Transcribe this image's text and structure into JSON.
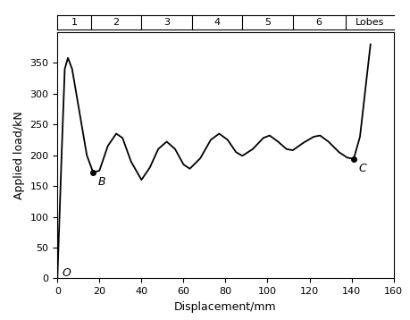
{
  "chart_data": {
    "type": "line",
    "xlabel": "Displacement/mm",
    "ylabel": "Applied load/kN",
    "x": [
      0,
      2,
      3.5,
      5,
      7,
      10,
      14,
      17,
      20,
      24,
      28,
      31,
      35,
      40,
      44,
      48,
      52,
      56,
      60,
      63,
      68,
      73,
      77,
      81,
      85,
      88,
      93,
      98,
      101,
      105,
      109,
      112,
      117,
      122,
      125,
      129,
      134,
      138,
      141,
      144,
      146,
      148,
      149
    ],
    "values": [
      0,
      200,
      340,
      358,
      340,
      280,
      200,
      172,
      175,
      215,
      235,
      228,
      190,
      160,
      180,
      210,
      222,
      210,
      185,
      178,
      195,
      225,
      235,
      225,
      205,
      199,
      210,
      228,
      232,
      222,
      210,
      208,
      220,
      230,
      232,
      222,
      205,
      196,
      194,
      230,
      290,
      350,
      380
    ],
    "color": "#000000",
    "points": [
      {
        "label": "O",
        "x": 0,
        "y": 0
      },
      {
        "label": "B",
        "x": 17,
        "y": 172
      },
      {
        "label": "C",
        "x": 141,
        "y": 194
      }
    ],
    "lobes_title": "Lobes",
    "lobes": [
      {
        "label": "1",
        "start": 0,
        "end": 16
      },
      {
        "label": "2",
        "start": 16,
        "end": 40
      },
      {
        "label": "3",
        "start": 40,
        "end": 64
      },
      {
        "label": "4",
        "start": 64,
        "end": 88
      },
      {
        "label": "5",
        "start": 88,
        "end": 112
      },
      {
        "label": "6",
        "start": 112,
        "end": 137
      }
    ],
    "xlim": [
      0,
      160
    ],
    "xticks": [
      0,
      20,
      40,
      60,
      80,
      100,
      120,
      140,
      160
    ],
    "ylim": [
      0,
      400
    ],
    "yticks": [
      0,
      50,
      100,
      150,
      200,
      250,
      300,
      350
    ],
    "grid": false
  }
}
